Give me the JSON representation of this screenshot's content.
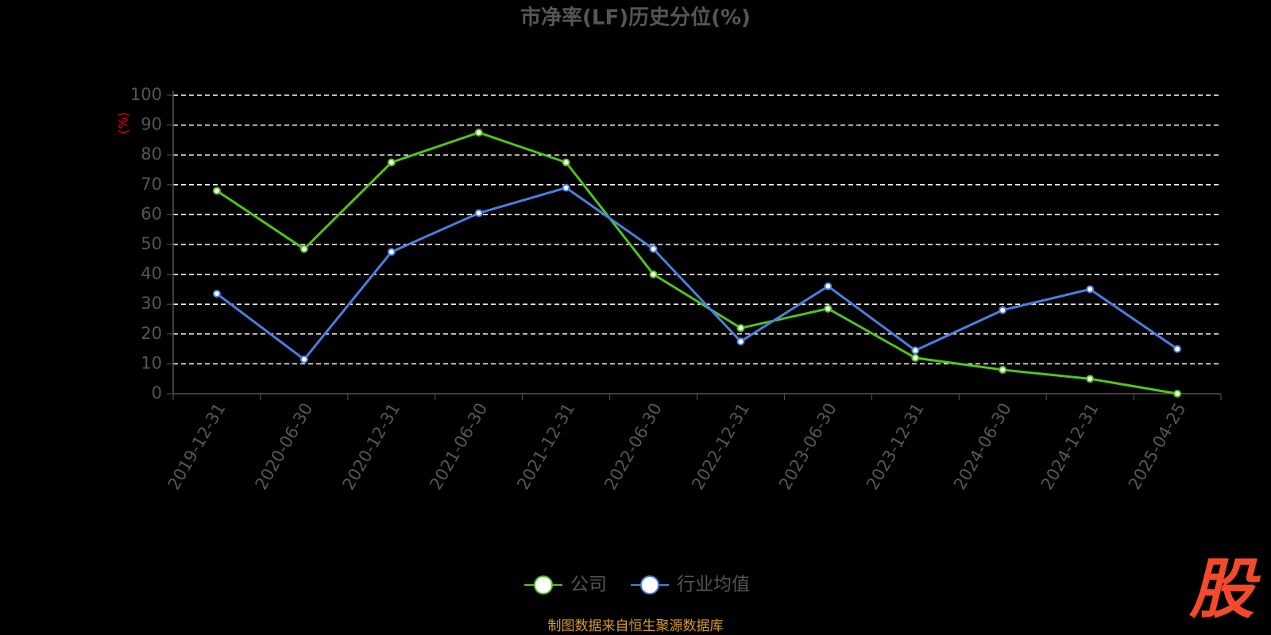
{
  "chart_data": {
    "type": "line",
    "title": "市净率(LF)历史分位(%)",
    "y_label": "(%)",
    "categories": [
      "2019-12-31",
      "2020-06-30",
      "2020-12-31",
      "2021-06-30",
      "2021-12-31",
      "2022-06-30",
      "2022-12-31",
      "2023-06-30",
      "2023-12-31",
      "2024-06-30",
      "2024-12-31",
      "2025-04-25"
    ],
    "series": [
      {
        "name": "公司",
        "color": "#52c41a",
        "values": [
          68,
          48.5,
          77.5,
          87.5,
          77.5,
          40,
          22,
          28.5,
          12,
          8,
          5,
          0
        ]
      },
      {
        "name": "行业均值",
        "color": "#4a7fe0",
        "values": [
          33.5,
          11.5,
          47.5,
          60.5,
          69,
          48.5,
          17.5,
          36,
          14.5,
          28,
          35,
          15
        ]
      }
    ],
    "ylim": [
      0,
      100
    ],
    "yticks": [
      0,
      10,
      20,
      30,
      40,
      50,
      60,
      70,
      80,
      90,
      100
    ],
    "grid": true
  },
  "source": "制图数据来自恒生聚源数据库",
  "logo": "股"
}
